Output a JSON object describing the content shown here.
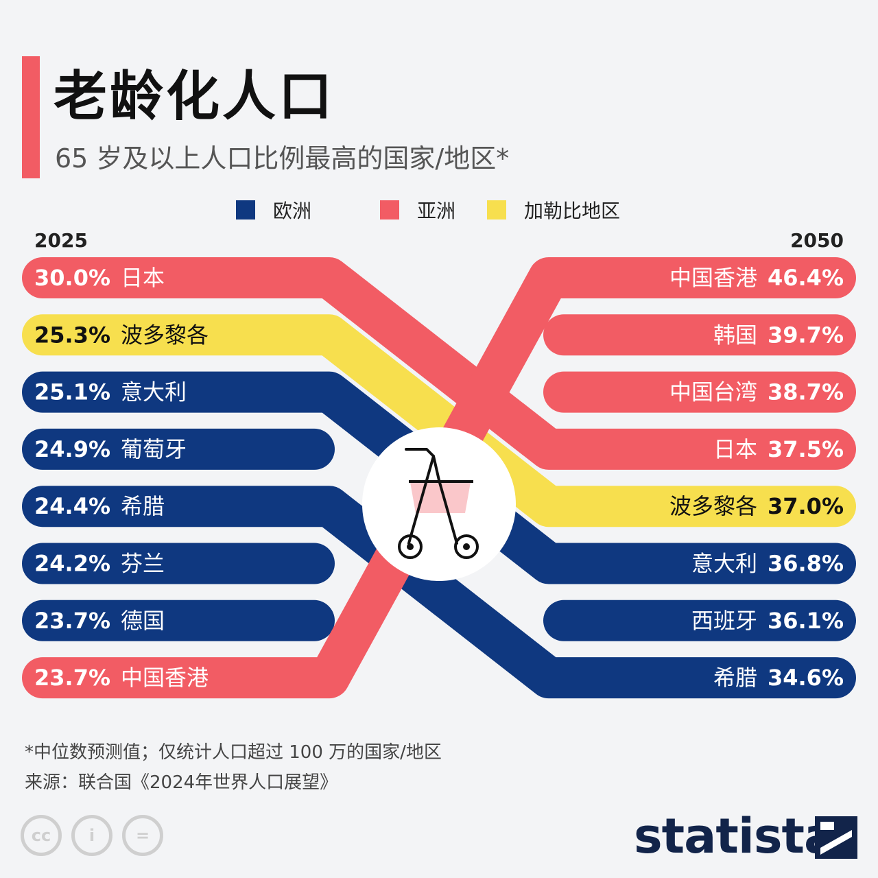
{
  "title": "老龄化人口",
  "subtitle": "65 岁及以上人口比例最高的国家/地区*",
  "colors": {
    "欧洲": "#0f3880",
    "亚洲": "#f25c64",
    "加勒比地区": "#f7df4e",
    "accent": "#f25c64",
    "brand": "#12244a"
  },
  "legend": [
    {
      "label": "欧洲",
      "color": "#0f3880"
    },
    {
      "label": "亚洲",
      "color": "#f25c64"
    },
    {
      "label": "加勒比地区",
      "color": "#f7df4e"
    }
  ],
  "chart_data": {
    "type": "bump",
    "left_year": "2025",
    "right_year": "2050",
    "left": [
      {
        "region": "日本",
        "value": "30.0%",
        "group": "亚洲"
      },
      {
        "region": "波多黎各",
        "value": "25.3%",
        "group": "加勒比地区"
      },
      {
        "region": "意大利",
        "value": "25.1%",
        "group": "欧洲"
      },
      {
        "region": "葡萄牙",
        "value": "24.9%",
        "group": "欧洲"
      },
      {
        "region": "希腊",
        "value": "24.4%",
        "group": "欧洲"
      },
      {
        "region": "芬兰",
        "value": "24.2%",
        "group": "欧洲"
      },
      {
        "region": "德国",
        "value": "23.7%",
        "group": "欧洲"
      },
      {
        "region": "中国香港",
        "value": "23.7%",
        "group": "亚洲"
      }
    ],
    "right": [
      {
        "region": "中国香港",
        "value": "46.4%",
        "group": "亚洲"
      },
      {
        "region": "韩国",
        "value": "39.7%",
        "group": "亚洲"
      },
      {
        "region": "中国台湾",
        "value": "38.7%",
        "group": "亚洲"
      },
      {
        "region": "日本",
        "value": "37.5%",
        "group": "亚洲"
      },
      {
        "region": "波多黎各",
        "value": "37.0%",
        "group": "加勒比地区"
      },
      {
        "region": "意大利",
        "value": "36.8%",
        "group": "欧洲"
      },
      {
        "region": "西班牙",
        "value": "36.1%",
        "group": "欧洲"
      },
      {
        "region": "希腊",
        "value": "34.6%",
        "group": "欧洲"
      }
    ]
  },
  "footnote": "*中位数预测值；仅统计人口超过 100 万的国家/地区",
  "source": "来源：联合国《2024年世界人口展望》",
  "brand": "statista",
  "license_icons": [
    "cc-icon",
    "attribution-icon",
    "no-derivatives-icon"
  ]
}
